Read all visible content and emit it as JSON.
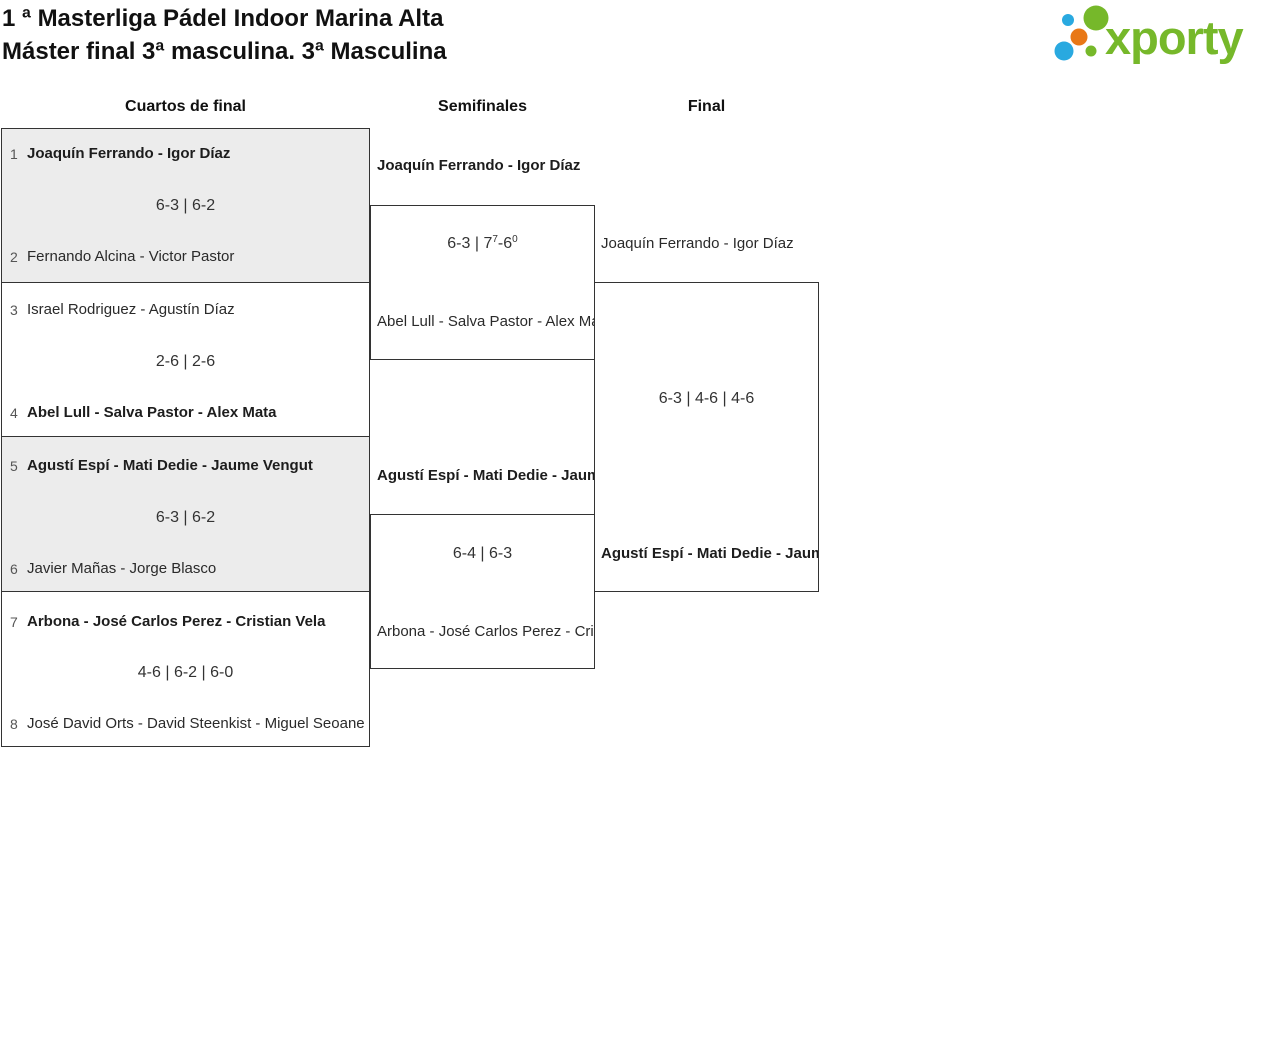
{
  "header": {
    "title_line1": "1 ª Masterliga Pádel Indoor Marina Alta",
    "title_line2": "Máster final 3ª masculina. 3ª Masculina"
  },
  "logo": {
    "text": "xporty",
    "green": "#76b82a",
    "blue": "#29a9e0",
    "orange": "#e87817"
  },
  "round_headers": {
    "quarterfinals": "Cuartos de final",
    "semifinals": "Semifinales",
    "final": "Final"
  },
  "colors": {
    "box_fill_shaded": "#ececec",
    "box_border": "#333333",
    "text": "#2a2a2a",
    "seed_number": "#555555"
  },
  "bracket": {
    "quarterfinals": [
      {
        "seed_top": "1",
        "team_top": "Joaquín Ferrando - Igor Díaz",
        "team_top_winner": true,
        "score": [
          {
            "t": "6-3 | 6-2"
          }
        ],
        "seed_bottom": "2",
        "team_bottom": "Fernando Alcina - Victor Pastor",
        "team_bottom_winner": false
      },
      {
        "seed_top": "3",
        "team_top": "Israel Rodriguez - Agustín Díaz",
        "team_top_winner": false,
        "score": [
          {
            "t": "2-6 | 2-6"
          }
        ],
        "seed_bottom": "4",
        "team_bottom": "Abel Lull - Salva Pastor - Alex Mata",
        "team_bottom_winner": true
      },
      {
        "seed_top": "5",
        "team_top": "Agustí Espí - Mati Dedie - Jaume Vengut",
        "team_top_winner": true,
        "score": [
          {
            "t": "6-3 | 6-2"
          }
        ],
        "seed_bottom": "6",
        "team_bottom": "Javier Mañas - Jorge Blasco",
        "team_bottom_winner": false
      },
      {
        "seed_top": "7",
        "team_top": "Arbona - José Carlos Perez - Cristian Vela",
        "team_top_winner": true,
        "score": [
          {
            "t": "4-6 | 6-2 | 6-0"
          }
        ],
        "seed_bottom": "8",
        "team_bottom": "José David Orts - David Steenkist - Miguel Seoane",
        "team_bottom_winner": false
      }
    ],
    "semifinals": [
      {
        "team_top": "Joaquín Ferrando - Igor Díaz",
        "team_top_winner": true,
        "score": [
          {
            "t": "6-3 | 7"
          },
          {
            "t": "7",
            "sup": true
          },
          {
            "t": "-6"
          },
          {
            "t": "0",
            "sup": true
          }
        ],
        "team_bottom": "Abel Lull - Salva Pastor - Alex Mata",
        "team_bottom_winner": false
      },
      {
        "team_top": "Agustí Espí - Mati Dedie - Jaume Vengut",
        "team_top_winner": true,
        "score": [
          {
            "t": "6-4 | 6-3"
          }
        ],
        "team_bottom": "Arbona - José Carlos Perez - Cristian Vela",
        "team_bottom_winner": false
      }
    ],
    "final": {
      "team_top": "Joaquín Ferrando - Igor Díaz",
      "team_top_winner": false,
      "score": [
        {
          "t": "6-3 | 4-6 | 4-6"
        }
      ],
      "team_bottom": "Agustí Espí - Mati Dedie - Jaume Vengut",
      "team_bottom_winner": true
    }
  }
}
